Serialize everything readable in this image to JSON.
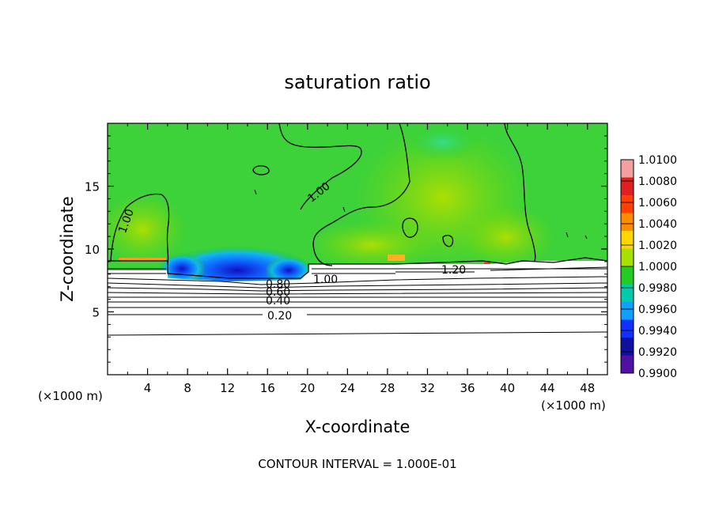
{
  "chart_data": {
    "type": "heatmap",
    "title": "saturation ratio",
    "xlabel": "X-coordinate",
    "ylabel": "Z-coordinate",
    "x_unit_label": "(×1000 m)",
    "z_unit_label": "(×1000 m)",
    "xlim": [
      0,
      50
    ],
    "ylim": [
      0,
      20
    ],
    "x_ticks": [
      "4",
      "8",
      "12",
      "16",
      "20",
      "24",
      "28",
      "32",
      "36",
      "40",
      "44",
      "48"
    ],
    "y_ticks": [
      "5",
      "10",
      "15"
    ],
    "colorbar": {
      "labels": [
        "1.0100",
        "1.0080",
        "1.0060",
        "1.0040",
        "1.0020",
        "1.0000",
        "0.9980",
        "0.9960",
        "0.9940",
        "0.9920",
        "0.9900"
      ],
      "colors": [
        "#f5a0a0",
        "#e02020",
        "#ff4000",
        "#ff8c00",
        "#ffd700",
        "#a8e000",
        "#22cc22",
        "#00ccaa",
        "#10a0ff",
        "#1030ff",
        "#1010a0",
        "#5010a0"
      ]
    },
    "contour_labels": [
      {
        "text": "1.00",
        "x": 21.5,
        "z": 7.6
      },
      {
        "text": "1.00",
        "x": 21.5,
        "z": 14.8
      },
      {
        "text": "1.00",
        "x": 2.0,
        "z": 12.8
      },
      {
        "text": "1.20",
        "x": 35.0,
        "z": 8.4
      },
      {
        "text": "0.80",
        "x": 16.0,
        "z": 7.1
      },
      {
        "text": "0.60",
        "x": 16.0,
        "z": 6.5
      },
      {
        "text": "0.40",
        "x": 16.0,
        "z": 5.9
      },
      {
        "text": "0.20",
        "x": 17.0,
        "z": 4.6
      }
    ],
    "contour_interval_note": "CONTOUR INTERVAL = 1.000E-01"
  }
}
